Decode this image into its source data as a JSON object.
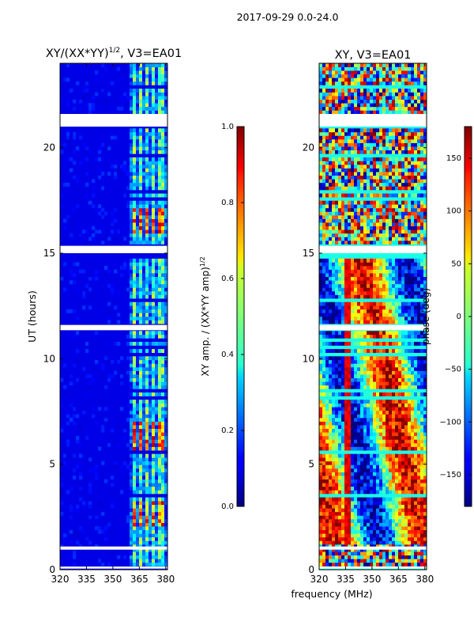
{
  "figure": {
    "suptitle": "2017-09-29 0.0-24.0",
    "xlabel": "frequency (MHz)"
  },
  "chart_data": [
    {
      "type": "heatmap",
      "title_base": "XY/(XX*YY)",
      "title_exponent": "1/2",
      "title_suffix": ", V3=EA01",
      "xlabel": "",
      "ylabel": "UT (hours)",
      "xlim": [
        320,
        381
      ],
      "ylim": [
        0,
        24
      ],
      "xticks": [
        320,
        335,
        350,
        365,
        380
      ],
      "yticks": [
        0,
        5,
        10,
        15,
        20
      ],
      "colorbar": {
        "label_base": "XY amp. / (XX*YY amp)",
        "label_exponent": "1/2",
        "range": [
          0.0,
          1.0
        ],
        "ticks": [
          "0.0",
          "0.2",
          "0.4",
          "0.6",
          "0.8",
          "1.0"
        ],
        "tick_values": [
          0.0,
          0.2,
          0.4,
          0.6,
          0.8,
          1.0
        ]
      },
      "bright_channels_mhz": [
        [
          361.5,
          363.5
        ],
        [
          365.5,
          367.5
        ],
        [
          369,
          371
        ],
        [
          371.5,
          373.5
        ],
        [
          375.5,
          377.5
        ],
        [
          378,
          380
        ]
      ],
      "flagged_hours": [
        [
          21.0,
          21.6
        ],
        [
          15.0,
          15.35
        ],
        [
          11.35,
          11.6
        ],
        [
          0.05,
          0.15
        ],
        [
          0.95,
          1.1
        ]
      ]
    },
    {
      "type": "heatmap",
      "title": "XY, V3=EA01",
      "xlabel": "",
      "ylabel": "",
      "xlim": [
        320,
        381
      ],
      "ylim": [
        0,
        24
      ],
      "xticks": [
        320,
        335,
        350,
        365,
        380
      ],
      "yticks": [
        0,
        5,
        10,
        15,
        20
      ],
      "colorbar": {
        "label": "phase (deg)",
        "range": [
          -180,
          180
        ],
        "ticks": [
          "150",
          "100",
          "50",
          "0",
          "−50",
          "−100",
          "−150"
        ],
        "tick_values": [
          150,
          100,
          50,
          0,
          -50,
          -100,
          -150
        ]
      },
      "flagged_hours": [
        [
          21.0,
          21.6
        ],
        [
          15.0,
          15.35
        ],
        [
          11.35,
          11.6
        ],
        [
          0.05,
          0.15
        ],
        [
          0.95,
          1.1
        ]
      ]
    }
  ]
}
